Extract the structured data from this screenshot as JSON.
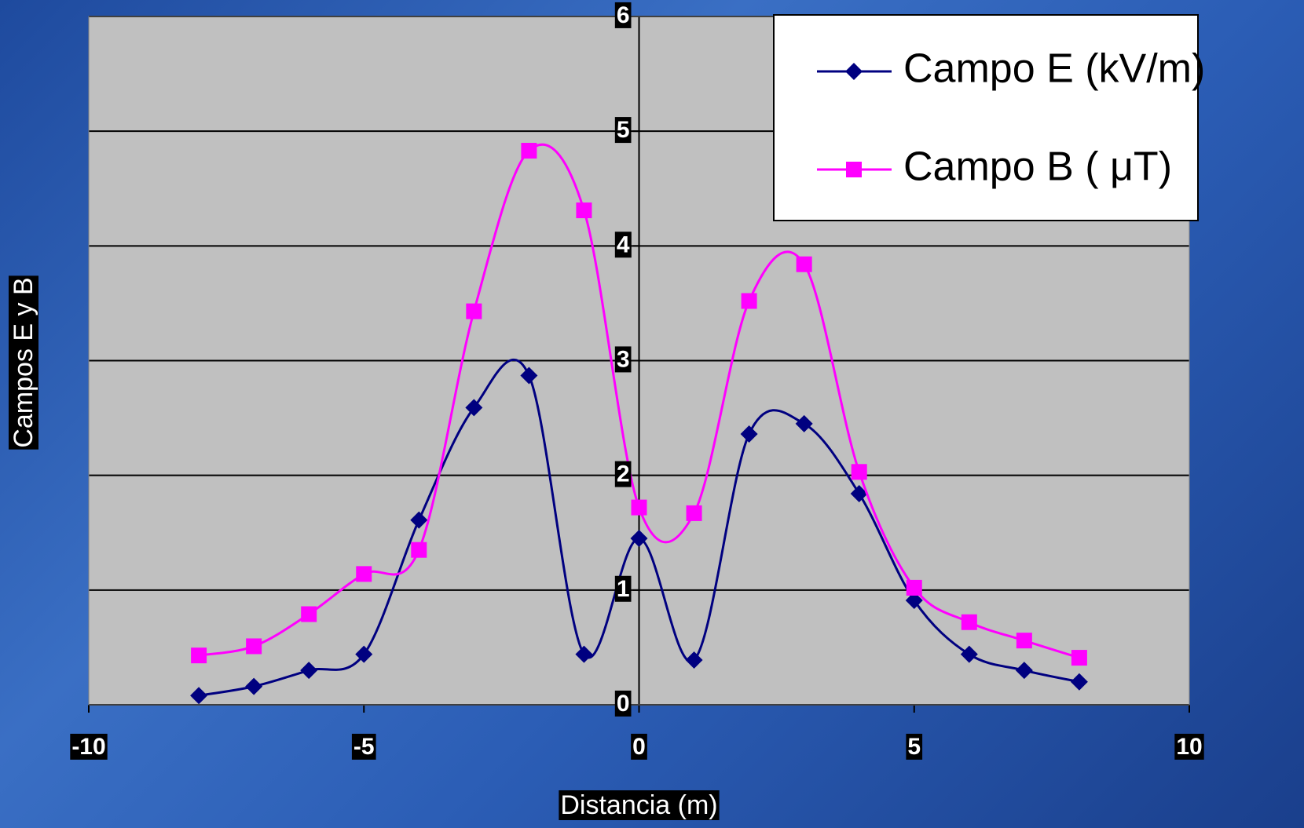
{
  "chart_data": {
    "type": "scatter",
    "x_label": "Distancia (m)",
    "y_label": "Campos E y B",
    "x": [
      -8,
      -7,
      -6,
      -5,
      -4,
      -3,
      -2,
      -1,
      0,
      1,
      2,
      3,
      4,
      5,
      6,
      7,
      8
    ],
    "series": [
      {
        "name": "Campo E (kV/m)",
        "color": "#000080",
        "marker": "diamond",
        "values": [
          0.08,
          0.16,
          0.3,
          0.44,
          1.61,
          2.59,
          2.87,
          0.44,
          1.45,
          0.39,
          2.36,
          2.45,
          1.84,
          0.91,
          0.44,
          0.3,
          0.2
        ]
      },
      {
        "name": "Campo B ( μT)",
        "color": "#ff00ff",
        "marker": "square",
        "values": [
          0.43,
          0.51,
          0.79,
          1.14,
          1.35,
          3.43,
          4.83,
          4.31,
          1.72,
          1.67,
          3.52,
          3.84,
          2.03,
          1.02,
          0.72,
          0.56,
          0.41
        ]
      }
    ],
    "xlim": [
      -10,
      10
    ],
    "xticks": [
      -10,
      -5,
      0,
      5,
      10
    ],
    "ylim": [
      0,
      6
    ],
    "yticks": [
      0,
      1,
      2,
      3,
      4,
      5,
      6
    ],
    "grid": true,
    "smooth": true,
    "legend": "top-right"
  }
}
